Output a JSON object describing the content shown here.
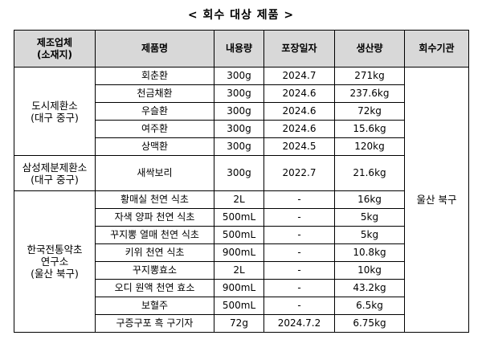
{
  "title": "< 회수 대상 제품 >",
  "table": {
    "headers": {
      "maker_line1": "제조업체",
      "maker_line2": "(소재지)",
      "product": "제품명",
      "volume": "내용량",
      "pack_date": "포장일자",
      "production": "생산량",
      "agency": "회수기관"
    },
    "groups": [
      {
        "line1": "도시제환소",
        "line2": "(대구 중구)"
      },
      {
        "line1": "삼성제분제환소",
        "line2": "(대구 중구)"
      },
      {
        "line1": "한국전통약초",
        "line2": "연구소",
        "line3": "(울산 북구)"
      }
    ],
    "agency": "울산 북구",
    "rows": [
      {
        "product": "회춘환",
        "volume": "300g",
        "pack_date": "2024.7",
        "production": "271kg"
      },
      {
        "product": "천금채환",
        "volume": "300g",
        "pack_date": "2024.6",
        "production": "237.6kg"
      },
      {
        "product": "우슬환",
        "volume": "300g",
        "pack_date": "2024.6",
        "production": "72kg"
      },
      {
        "product": "여주환",
        "volume": "300g",
        "pack_date": "2024.6",
        "production": "15.6kg"
      },
      {
        "product": "상맥환",
        "volume": "300g",
        "pack_date": "2024.5",
        "production": "120kg"
      },
      {
        "product": "새싹보리",
        "volume": "300g",
        "pack_date": "2022.7",
        "production": "21.6kg"
      },
      {
        "product": "황매실 천연 식초",
        "volume": "2L",
        "pack_date": "-",
        "production": "16kg"
      },
      {
        "product": "자색 양파 천연 식초",
        "volume": "500mL",
        "pack_date": "-",
        "production": "5kg"
      },
      {
        "product": "꾸지뽕 열매 천연 식초",
        "volume": "500mL",
        "pack_date": "-",
        "production": "5kg"
      },
      {
        "product": "키위 천연 식초",
        "volume": "900mL",
        "pack_date": "-",
        "production": "10.8kg"
      },
      {
        "product": "꾸지뽕효소",
        "volume": "2L",
        "pack_date": "-",
        "production": "10kg"
      },
      {
        "product": "오디 원액 천연 효소",
        "volume": "900mL",
        "pack_date": "-",
        "production": "43.2kg"
      },
      {
        "product": "보혈주",
        "volume": "500mL",
        "pack_date": "-",
        "production": "6.5kg"
      },
      {
        "product": "구증구포 흑 구기자",
        "volume": "72g",
        "pack_date": "2024.7.2",
        "production": "6.75kg"
      }
    ]
  }
}
